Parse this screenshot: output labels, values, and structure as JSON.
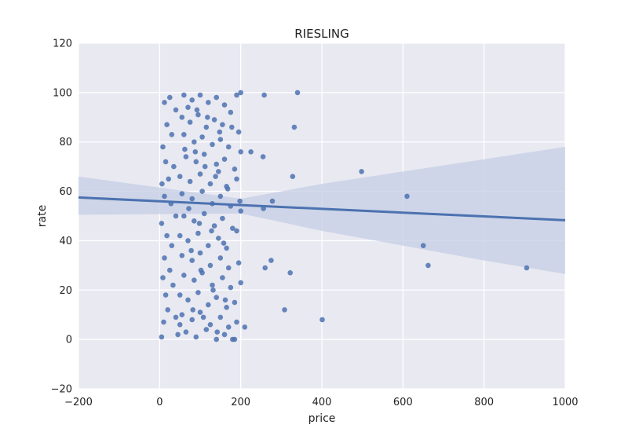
{
  "chart_data": {
    "type": "scatter",
    "title": "RIESLING",
    "xlabel": "price",
    "ylabel": "rate",
    "xlim": [
      -200,
      1000
    ],
    "ylim": [
      -20,
      120
    ],
    "x_ticks": [
      -200,
      0,
      200,
      400,
      600,
      800,
      1000
    ],
    "y_ticks": [
      -20,
      0,
      20,
      40,
      60,
      80,
      100,
      120
    ],
    "grid": true,
    "background": "#e9e9f2",
    "colors": {
      "points": "#4c72b0",
      "line": "#4c72b0",
      "band": "#c4cde4"
    },
    "series": [
      {
        "points": [
          [
            258,
            99
          ],
          [
            340,
            100
          ],
          [
            332,
            86
          ],
          [
            225,
            76
          ],
          [
            255,
            74
          ],
          [
            498,
            68
          ],
          [
            328,
            66
          ],
          [
            610,
            58
          ],
          [
            278,
            56
          ],
          [
            256,
            53
          ],
          [
            650,
            38
          ],
          [
            662,
            30
          ],
          [
            905,
            29
          ],
          [
            260,
            29
          ],
          [
            275,
            32
          ],
          [
            322,
            27
          ],
          [
            308,
            12
          ],
          [
            401,
            8
          ],
          [
            210,
            5
          ],
          [
            5,
            1
          ],
          [
            12,
            96
          ],
          [
            18,
            87
          ],
          [
            25,
            98
          ],
          [
            40,
            93
          ],
          [
            8,
            78
          ],
          [
            30,
            83
          ],
          [
            15,
            72
          ],
          [
            22,
            65
          ],
          [
            6,
            63
          ],
          [
            35,
            70
          ],
          [
            12,
            58
          ],
          [
            28,
            55
          ],
          [
            40,
            50
          ],
          [
            5,
            47
          ],
          [
            18,
            42
          ],
          [
            30,
            38
          ],
          [
            12,
            33
          ],
          [
            25,
            28
          ],
          [
            8,
            25
          ],
          [
            33,
            22
          ],
          [
            15,
            18
          ],
          [
            20,
            12
          ],
          [
            40,
            9
          ],
          [
            50,
            6
          ],
          [
            10,
            7
          ],
          [
            45,
            2
          ],
          [
            60,
            99
          ],
          [
            80,
            97
          ],
          [
            100,
            99
          ],
          [
            120,
            96
          ],
          [
            140,
            98
          ],
          [
            160,
            95
          ],
          [
            190,
            99
          ],
          [
            200,
            100
          ],
          [
            55,
            90
          ],
          [
            75,
            88
          ],
          [
            95,
            91
          ],
          [
            115,
            86
          ],
          [
            135,
            89
          ],
          [
            155,
            87
          ],
          [
            175,
            92
          ],
          [
            60,
            83
          ],
          [
            85,
            80
          ],
          [
            105,
            82
          ],
          [
            130,
            79
          ],
          [
            150,
            81
          ],
          [
            170,
            78
          ],
          [
            195,
            84
          ],
          [
            65,
            74
          ],
          [
            90,
            72
          ],
          [
            110,
            75
          ],
          [
            140,
            71
          ],
          [
            160,
            73
          ],
          [
            185,
            69
          ],
          [
            200,
            76
          ],
          [
            50,
            66
          ],
          [
            75,
            64
          ],
          [
            100,
            67
          ],
          [
            125,
            63
          ],
          [
            145,
            68
          ],
          [
            165,
            62
          ],
          [
            190,
            65
          ],
          [
            55,
            59
          ],
          [
            80,
            57
          ],
          [
            105,
            60
          ],
          [
            130,
            55
          ],
          [
            150,
            58
          ],
          [
            175,
            54
          ],
          [
            198,
            56
          ],
          [
            60,
            50
          ],
          [
            85,
            48
          ],
          [
            110,
            51
          ],
          [
            135,
            46
          ],
          [
            155,
            49
          ],
          [
            180,
            45
          ],
          [
            200,
            52
          ],
          [
            50,
            42
          ],
          [
            70,
            40
          ],
          [
            95,
            43
          ],
          [
            120,
            38
          ],
          [
            145,
            41
          ],
          [
            165,
            37
          ],
          [
            190,
            44
          ],
          [
            55,
            34
          ],
          [
            80,
            32
          ],
          [
            100,
            35
          ],
          [
            125,
            30
          ],
          [
            150,
            33
          ],
          [
            170,
            29
          ],
          [
            195,
            31
          ],
          [
            60,
            26
          ],
          [
            85,
            24
          ],
          [
            105,
            27
          ],
          [
            130,
            22
          ],
          [
            155,
            25
          ],
          [
            175,
            21
          ],
          [
            200,
            23
          ],
          [
            50,
            18
          ],
          [
            70,
            16
          ],
          [
            95,
            19
          ],
          [
            120,
            14
          ],
          [
            140,
            17
          ],
          [
            165,
            13
          ],
          [
            185,
            15
          ],
          [
            55,
            10
          ],
          [
            80,
            8
          ],
          [
            100,
            11
          ],
          [
            125,
            6
          ],
          [
            150,
            9
          ],
          [
            170,
            5
          ],
          [
            190,
            7
          ],
          [
            65,
            3
          ],
          [
            90,
            1
          ],
          [
            115,
            4
          ],
          [
            140,
            0
          ],
          [
            180,
            0
          ],
          [
            185,
            0
          ],
          [
            160,
            2
          ],
          [
            70,
            94
          ],
          [
            92,
            93
          ],
          [
            118,
            90
          ],
          [
            148,
            84
          ],
          [
            178,
            86
          ],
          [
            62,
            77
          ],
          [
            88,
            76
          ],
          [
            112,
            70
          ],
          [
            138,
            66
          ],
          [
            168,
            61
          ],
          [
            72,
            53
          ],
          [
            98,
            47
          ],
          [
            128,
            44
          ],
          [
            158,
            39
          ],
          [
            78,
            36
          ],
          [
            102,
            28
          ],
          [
            132,
            20
          ],
          [
            162,
            16
          ],
          [
            82,
            12
          ],
          [
            108,
            9
          ],
          [
            142,
            3
          ]
        ]
      }
    ],
    "regression": {
      "line": [
        [
          -200,
          57.5
        ],
        [
          1000,
          48.3
        ]
      ],
      "ci_upper": [
        [
          -200,
          66
        ],
        [
          200,
          57
        ],
        [
          400,
          63
        ],
        [
          600,
          68
        ],
        [
          800,
          73
        ],
        [
          1000,
          78
        ]
      ],
      "ci_lower": [
        [
          -200,
          50.5
        ],
        [
          200,
          51
        ],
        [
          400,
          44
        ],
        [
          600,
          38
        ],
        [
          800,
          32
        ],
        [
          1000,
          26.5
        ]
      ]
    }
  }
}
